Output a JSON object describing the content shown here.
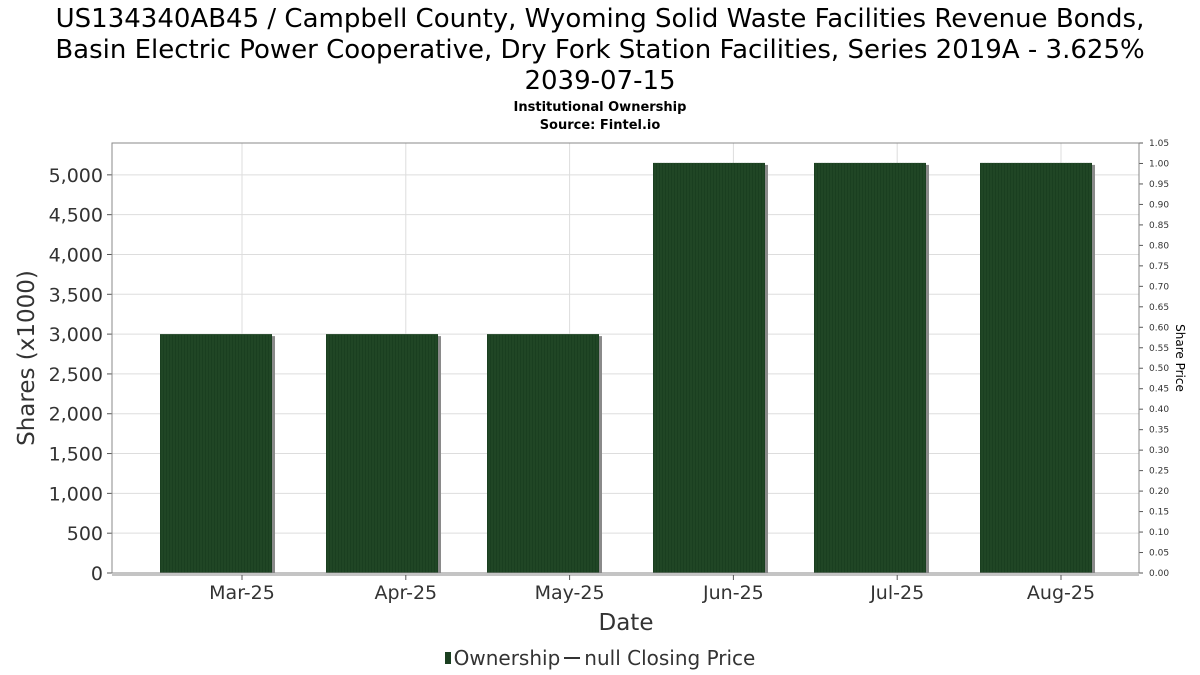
{
  "chart_data": {
    "type": "bar",
    "title_lines": [
      "US134340AB45 / Campbell County, Wyoming Solid Waste Facilities Revenue Bonds,",
      "Basin Electric Power Cooperative, Dry Fork Station Facilities, Series 2019A - 3.625%",
      "2039-07-15"
    ],
    "subtitle": "Institutional Ownership",
    "source": "Source: Fintel.io",
    "xlabel": "Date",
    "ylabel": "Shares (x1000)",
    "y2label": "Share Price",
    "categories": [
      "Mar-25",
      "Apr-25",
      "May-25",
      "Jun-25",
      "Jul-25",
      "Aug-25"
    ],
    "series": [
      {
        "name": "Ownership",
        "values": [
          3000,
          3000,
          3000,
          5150,
          5150,
          5150
        ]
      }
    ],
    "ylim": [
      0,
      5400
    ],
    "yticks": [
      "0",
      "500",
      "1,000",
      "1,500",
      "2,000",
      "2,500",
      "3,000",
      "3,500",
      "4,000",
      "4,500",
      "5,000"
    ],
    "y2lim": [
      0,
      1.05
    ],
    "y2ticks": [
      "0.00",
      "0.05",
      "0.10",
      "0.15",
      "0.20",
      "0.25",
      "0.30",
      "0.35",
      "0.40",
      "0.45",
      "0.50",
      "0.55",
      "0.60",
      "0.65",
      "0.70",
      "0.75",
      "0.80",
      "0.85",
      "0.90",
      "0.95",
      "1.00",
      "1.05"
    ],
    "grid": true,
    "legend_position": "bottom",
    "legend": {
      "bar_label": "Ownership",
      "line_label": "null Closing Price"
    },
    "colors": {
      "bar": "#1a3f20",
      "bar_stripe": "#2e5a33",
      "shadow": "#8a8a8a",
      "grid": "#dddddd"
    }
  }
}
